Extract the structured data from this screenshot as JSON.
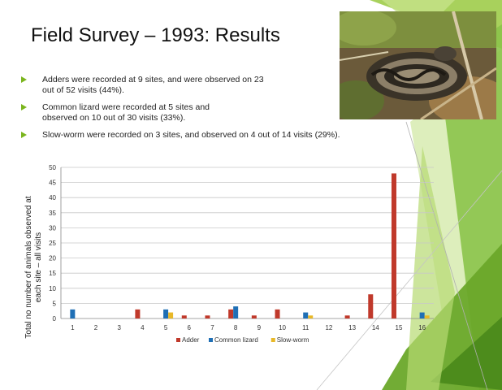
{
  "slide": {
    "title": "Field Survey – 1993: Results",
    "bullets": [
      "Adders were recorded at 9 sites,  and were observed on 23 out of 52 visits (44%).",
      "Common lizard were recorded at 5 sites and observed on 10 out of 30 visits (33%).",
      "Slow-worm were recorded on 3 sites, and observed on 4 out of 14 visits (29%)."
    ],
    "photo_icon": "adder-photo",
    "colors": {
      "accent_green": "#7ab51d",
      "adder": "#c0392b",
      "common_lizard": "#1f6fb5",
      "slow_worm": "#e8b828"
    }
  },
  "chart_data": {
    "type": "bar",
    "categories": [
      "1",
      "2",
      "3",
      "4",
      "5",
      "6",
      "7",
      "8",
      "9",
      "10",
      "11",
      "12",
      "13",
      "14",
      "15",
      "16"
    ],
    "series": [
      {
        "name": "Adder",
        "color": "#c0392b",
        "values": [
          0,
          0,
          0,
          3,
          0,
          1,
          1,
          3,
          1,
          3,
          0,
          0,
          1,
          8,
          48,
          0
        ]
      },
      {
        "name": "Common lizard",
        "color": "#1f6fb5",
        "values": [
          3,
          0,
          0,
          0,
          3,
          0,
          0,
          4,
          0,
          0,
          2,
          0,
          0,
          0,
          0,
          2
        ]
      },
      {
        "name": "Slow-worm",
        "color": "#e8b828",
        "values": [
          0,
          0,
          0,
          0,
          2,
          0,
          0,
          0,
          0,
          0,
          1,
          0,
          0,
          0,
          0,
          1
        ]
      }
    ],
    "ylim": [
      0,
      50
    ],
    "yticks": [
      0,
      5,
      10,
      15,
      20,
      25,
      30,
      35,
      40,
      45,
      50
    ],
    "ylabel": "Total no number of animals observed at each site – all visits",
    "xlabel": "",
    "legend_position": "bottom",
    "grid": true
  }
}
